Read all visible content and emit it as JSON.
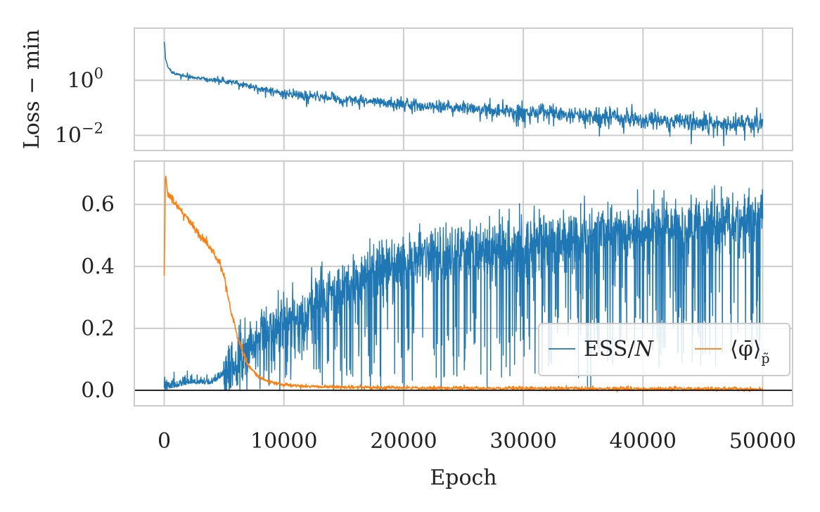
{
  "chart_data": [
    {
      "type": "line",
      "panel": "top",
      "yscale": "log",
      "ylabel": "Loss − min",
      "xlim": [
        -2500,
        52500
      ],
      "ylim_log10": [
        -2.55,
        1.9
      ],
      "ytick_labels": [
        {
          "base": "10",
          "exp": "0",
          "value": 1
        },
        {
          "base": "10",
          "exp": "−2",
          "value": 0.01
        }
      ],
      "series": [
        {
          "name": "Loss − min",
          "color": "#1f77b4",
          "trend_x": [
            0,
            100,
            300,
            600,
            1000,
            2000,
            3000,
            4000,
            5000,
            6000,
            8000,
            10000,
            15000,
            20000,
            25000,
            30000,
            35000,
            40000,
            45000,
            50000
          ],
          "trend_y": [
            25,
            6,
            3,
            2,
            1.7,
            1.4,
            1.2,
            1.05,
            0.95,
            0.8,
            0.5,
            0.32,
            0.2,
            0.13,
            0.1,
            0.07,
            0.05,
            0.04,
            0.03,
            0.025
          ],
          "noise_dex_start": 0.05,
          "noise_dex_end": 0.35
        }
      ]
    },
    {
      "type": "line",
      "panel": "bottom",
      "xlabel": "Epoch",
      "xlim": [
        -2500,
        52500
      ],
      "ylim": [
        -0.05,
        0.74
      ],
      "xticks": [
        0,
        10000,
        20000,
        30000,
        40000,
        50000
      ],
      "yticks": [
        0.0,
        0.2,
        0.4,
        0.6
      ],
      "xtick_labels": [
        "0",
        "10000",
        "20000",
        "30000",
        "40000",
        "50000"
      ],
      "ytick_labels": [
        "0.0",
        "0.2",
        "0.4",
        "0.6"
      ],
      "hline_y": 0.0,
      "legend": {
        "placement": "lower-right",
        "ncol": 2
      },
      "series": [
        {
          "name": "ESS/N",
          "label_main": "ESS/",
          "label_italic": "N",
          "color": "#1f77b4",
          "trend_x": [
            0,
            1000,
            2000,
            3000,
            4000,
            5000,
            6000,
            7000,
            8000,
            10000,
            12000,
            14000,
            16000,
            18000,
            20000,
            25000,
            30000,
            35000,
            40000,
            45000,
            50000
          ],
          "trend_y": [
            0.0,
            0.01,
            0.02,
            0.02,
            0.02,
            0.05,
            0.1,
            0.13,
            0.17,
            0.22,
            0.27,
            0.32,
            0.36,
            0.39,
            0.42,
            0.45,
            0.48,
            0.5,
            0.52,
            0.54,
            0.56
          ],
          "noise_amplitude": 0.06,
          "dip_depth_max": 0.45
        },
        {
          "name": "⟨φ̄⟩p̃",
          "label_main": "⟨φ̄⟩",
          "label_sub": "p̃",
          "color": "#ff7f0e",
          "trend_x": [
            0,
            100,
            300,
            1000,
            2000,
            3000,
            4000,
            4800,
            5200,
            5600,
            6000,
            6500,
            7000,
            8000,
            9000,
            10000,
            12000,
            15000,
            20000,
            30000,
            40000,
            50000
          ],
          "trend_y": [
            0.37,
            0.7,
            0.63,
            0.6,
            0.55,
            0.5,
            0.45,
            0.4,
            0.33,
            0.25,
            0.19,
            0.13,
            0.08,
            0.04,
            0.025,
            0.018,
            0.012,
            0.01,
            0.008,
            0.006,
            0.005,
            0.004
          ],
          "noise_amplitude": 0.003
        }
      ]
    }
  ]
}
